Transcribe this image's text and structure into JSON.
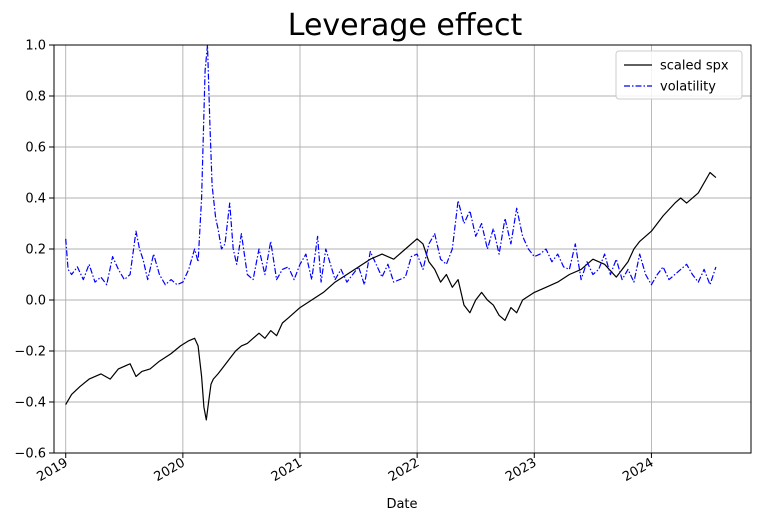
{
  "chart_data": {
    "type": "line",
    "title": "Leverage effect",
    "xlabel": "Date",
    "ylabel": "",
    "xlim": [
      2018.9,
      2024.85
    ],
    "ylim": [
      -0.6,
      1.0
    ],
    "grid": true,
    "legend_position": "top-right",
    "x_ticks": [
      {
        "value": 2019,
        "label": "2019"
      },
      {
        "value": 2020,
        "label": "2020"
      },
      {
        "value": 2021,
        "label": "2021"
      },
      {
        "value": 2022,
        "label": "2022"
      },
      {
        "value": 2023,
        "label": "2023"
      },
      {
        "value": 2024,
        "label": "2024"
      }
    ],
    "y_ticks": [
      {
        "value": -0.6,
        "label": "−0.6"
      },
      {
        "value": -0.4,
        "label": "−0.4"
      },
      {
        "value": -0.2,
        "label": "−0.2"
      },
      {
        "value": 0.0,
        "label": "0.0"
      },
      {
        "value": 0.2,
        "label": "0.2"
      },
      {
        "value": 0.4,
        "label": "0.4"
      },
      {
        "value": 0.6,
        "label": "0.6"
      },
      {
        "value": 0.8,
        "label": "0.8"
      },
      {
        "value": 1.0,
        "label": "1.0"
      }
    ],
    "series": [
      {
        "name": "scaled spx",
        "color": "#000000",
        "style": "solid",
        "x": [
          2019.0,
          2019.05,
          2019.12,
          2019.2,
          2019.3,
          2019.38,
          2019.45,
          2019.55,
          2019.6,
          2019.65,
          2019.72,
          2019.8,
          2019.9,
          2019.98,
          2020.05,
          2020.1,
          2020.13,
          2020.16,
          2020.18,
          2020.2,
          2020.22,
          2020.24,
          2020.26,
          2020.3,
          2020.35,
          2020.4,
          2020.45,
          2020.5,
          2020.55,
          2020.6,
          2020.65,
          2020.7,
          2020.75,
          2020.8,
          2020.85,
          2020.9,
          2020.95,
          2021.0,
          2021.1,
          2021.2,
          2021.3,
          2021.4,
          2021.5,
          2021.6,
          2021.7,
          2021.8,
          2021.9,
          2022.0,
          2022.05,
          2022.1,
          2022.15,
          2022.2,
          2022.25,
          2022.3,
          2022.35,
          2022.4,
          2022.45,
          2022.5,
          2022.55,
          2022.6,
          2022.65,
          2022.7,
          2022.75,
          2022.8,
          2022.85,
          2022.9,
          2023.0,
          2023.1,
          2023.2,
          2023.3,
          2023.4,
          2023.5,
          2023.6,
          2023.7,
          2023.8,
          2023.85,
          2023.9,
          2024.0,
          2024.1,
          2024.2,
          2024.25,
          2024.3,
          2024.4,
          2024.5,
          2024.55
        ],
        "values": [
          -0.41,
          -0.37,
          -0.34,
          -0.31,
          -0.29,
          -0.31,
          -0.27,
          -0.25,
          -0.3,
          -0.28,
          -0.27,
          -0.24,
          -0.21,
          -0.18,
          -0.16,
          -0.15,
          -0.18,
          -0.3,
          -0.42,
          -0.47,
          -0.4,
          -0.33,
          -0.31,
          -0.29,
          -0.26,
          -0.23,
          -0.2,
          -0.18,
          -0.17,
          -0.15,
          -0.13,
          -0.15,
          -0.12,
          -0.14,
          -0.09,
          -0.07,
          -0.05,
          -0.03,
          0.0,
          0.03,
          0.07,
          0.1,
          0.13,
          0.16,
          0.18,
          0.16,
          0.2,
          0.24,
          0.22,
          0.15,
          0.12,
          0.07,
          0.1,
          0.05,
          0.08,
          -0.02,
          -0.05,
          0.0,
          0.03,
          0.0,
          -0.02,
          -0.06,
          -0.08,
          -0.03,
          -0.05,
          0.0,
          0.03,
          0.05,
          0.07,
          0.1,
          0.12,
          0.16,
          0.14,
          0.09,
          0.15,
          0.2,
          0.23,
          0.27,
          0.33,
          0.38,
          0.4,
          0.38,
          0.42,
          0.5,
          0.48
        ]
      },
      {
        "name": "volatility",
        "color": "#0000ff",
        "style": "dashdot",
        "x": [
          2019.0,
          2019.02,
          2019.05,
          2019.1,
          2019.15,
          2019.2,
          2019.25,
          2019.3,
          2019.35,
          2019.4,
          2019.45,
          2019.5,
          2019.55,
          2019.6,
          2019.63,
          2019.66,
          2019.7,
          2019.75,
          2019.8,
          2019.85,
          2019.9,
          2019.95,
          2020.0,
          2020.05,
          2020.1,
          2020.13,
          2020.16,
          2020.19,
          2020.21,
          2020.23,
          2020.25,
          2020.28,
          2020.3,
          2020.33,
          2020.36,
          2020.4,
          2020.43,
          2020.46,
          2020.5,
          2020.55,
          2020.6,
          2020.65,
          2020.7,
          2020.75,
          2020.8,
          2020.85,
          2020.9,
          2020.95,
          2021.0,
          2021.05,
          2021.1,
          2021.15,
          2021.18,
          2021.22,
          2021.3,
          2021.35,
          2021.4,
          2021.45,
          2021.5,
          2021.55,
          2021.6,
          2021.7,
          2021.75,
          2021.8,
          2021.9,
          2021.95,
          2022.0,
          2022.05,
          2022.1,
          2022.15,
          2022.2,
          2022.25,
          2022.3,
          2022.35,
          2022.4,
          2022.45,
          2022.5,
          2022.55,
          2022.6,
          2022.65,
          2022.7,
          2022.75,
          2022.8,
          2022.85,
          2022.9,
          2022.95,
          2023.0,
          2023.05,
          2023.1,
          2023.15,
          2023.2,
          2023.25,
          2023.3,
          2023.35,
          2023.4,
          2023.45,
          2023.5,
          2023.55,
          2023.6,
          2023.65,
          2023.7,
          2023.75,
          2023.8,
          2023.85,
          2023.9,
          2023.95,
          2024.0,
          2024.05,
          2024.1,
          2024.15,
          2024.2,
          2024.25,
          2024.3,
          2024.35,
          2024.4,
          2024.45,
          2024.5,
          2024.55
        ],
        "values": [
          0.24,
          0.12,
          0.1,
          0.13,
          0.08,
          0.14,
          0.07,
          0.09,
          0.06,
          0.17,
          0.12,
          0.08,
          0.1,
          0.27,
          0.2,
          0.16,
          0.08,
          0.18,
          0.1,
          0.06,
          0.08,
          0.06,
          0.07,
          0.12,
          0.2,
          0.15,
          0.4,
          0.9,
          1.0,
          0.7,
          0.45,
          0.32,
          0.28,
          0.2,
          0.22,
          0.38,
          0.2,
          0.14,
          0.26,
          0.1,
          0.08,
          0.2,
          0.1,
          0.23,
          0.08,
          0.12,
          0.13,
          0.08,
          0.14,
          0.18,
          0.08,
          0.25,
          0.07,
          0.2,
          0.08,
          0.12,
          0.07,
          0.1,
          0.13,
          0.06,
          0.19,
          0.09,
          0.14,
          0.07,
          0.09,
          0.17,
          0.18,
          0.12,
          0.22,
          0.26,
          0.16,
          0.14,
          0.2,
          0.39,
          0.3,
          0.35,
          0.25,
          0.3,
          0.2,
          0.28,
          0.18,
          0.32,
          0.22,
          0.36,
          0.25,
          0.2,
          0.17,
          0.18,
          0.2,
          0.15,
          0.18,
          0.13,
          0.12,
          0.22,
          0.08,
          0.15,
          0.1,
          0.12,
          0.18,
          0.1,
          0.16,
          0.08,
          0.12,
          0.07,
          0.18,
          0.1,
          0.06,
          0.1,
          0.13,
          0.08,
          0.1,
          0.12,
          0.14,
          0.1,
          0.07,
          0.12,
          0.06,
          0.13
        ]
      }
    ]
  }
}
